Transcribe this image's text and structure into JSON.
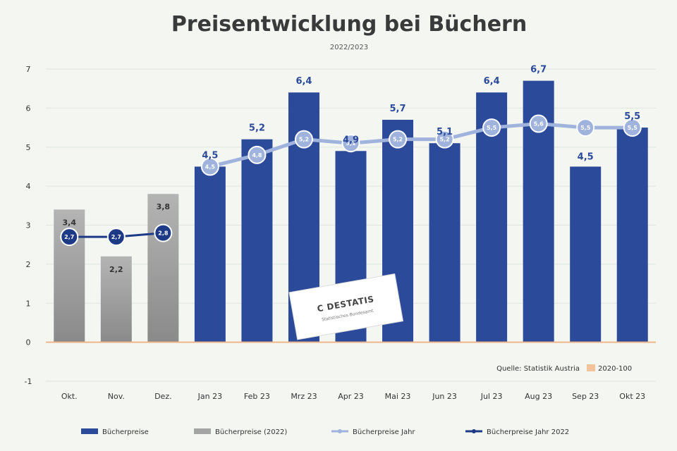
{
  "chart_data": {
    "type": "bar",
    "title": "Preisentwicklung bei Büchern",
    "subtitle": "2022/2023",
    "ylim": [
      -1,
      7
    ],
    "yticks": [
      -1,
      0,
      1,
      2,
      3,
      4,
      5,
      6,
      7
    ],
    "grid": true,
    "categories": [
      "Okt.",
      "Nov.",
      "Dez.",
      "Jan 23",
      "Feb 23",
      "Mrz 23",
      "Apr 23",
      "Mai 23",
      "Jun 23",
      "Jul 23",
      "Aug 23",
      "Sep 23",
      "Okt 23"
    ],
    "series": [
      {
        "name": "Bücherpreise",
        "type": "bar",
        "color": "#2c4a9a",
        "values": [
          null,
          null,
          null,
          4.5,
          5.2,
          6.4,
          4.9,
          5.7,
          5.1,
          6.4,
          6.7,
          4.5,
          5.5
        ]
      },
      {
        "name": "Bücherpreise (2022)",
        "type": "bar",
        "color": "#a4a4a4",
        "values": [
          3.4,
          2.2,
          3.8,
          null,
          null,
          null,
          null,
          null,
          null,
          null,
          null,
          null,
          null
        ]
      },
      {
        "name": "Bücherpreise Jahr",
        "type": "line",
        "color": "#9fb3dc",
        "values": [
          null,
          null,
          null,
          4.5,
          4.8,
          5.2,
          5.1,
          5.2,
          5.2,
          5.5,
          5.6,
          5.5,
          5.5
        ]
      },
      {
        "name": "Bücherpreise Jahr 2022",
        "type": "line",
        "color": "#1d3a86",
        "values": [
          2.7,
          2.7,
          2.8,
          null,
          null,
          null,
          null,
          null,
          null,
          null,
          null,
          null,
          null
        ]
      }
    ],
    "bar_labels": [
      "3,4",
      "2,2",
      "3,8",
      "4,5",
      "5,2",
      "6,4",
      "4,9",
      "5,7",
      "5,1",
      "6,4",
      "6,7",
      "4,5",
      "5,5"
    ],
    "marker_labels": [
      "2,7",
      "2,7",
      "2,8",
      "4,5",
      "4,8",
      "5,2",
      "5,1",
      "5,2",
      "5,2",
      "5,5",
      "5,6",
      "5,5",
      "5,5"
    ],
    "source_note": "Quelle: Statistik Austria",
    "source_legend": "2020-100",
    "legend_position": "bottom",
    "colors": {
      "bar_main": "#2c4a9a",
      "bar_prev": "#a4a4a4",
      "line_main": "#9fb3dc",
      "line_prev": "#1d3a86",
      "baseline": "#f0b58a"
    }
  },
  "logo": {
    "text": "C DESTATIS",
    "sub": "Statistisches Bundesamt"
  }
}
